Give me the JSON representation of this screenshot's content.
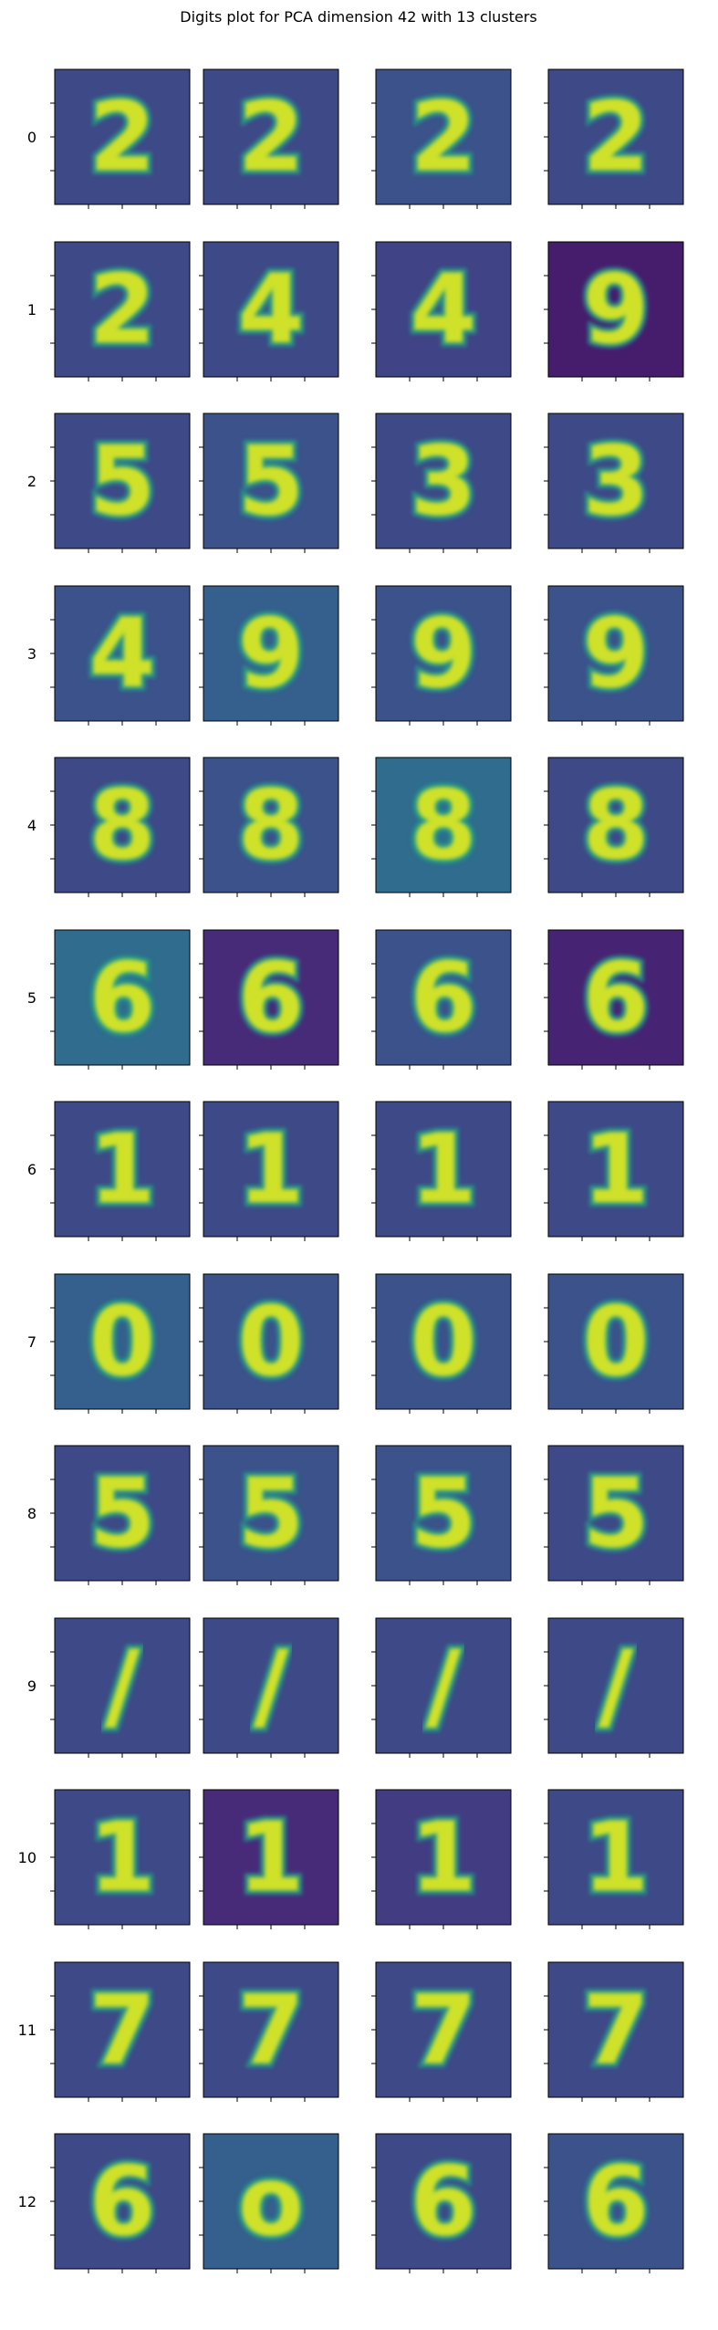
{
  "chart_data": {
    "type": "image-grid",
    "title": "Digits plot for PCA dimension 42 with 13 clusters",
    "colormap": "viridis",
    "colormap_stops": [
      "#440154",
      "#472d7b",
      "#3b528b",
      "#2c728e",
      "#21918c",
      "#28ae80",
      "#5ec962",
      "#addc30",
      "#fde725"
    ],
    "rows": [
      {
        "label": "0",
        "digits": [
          "2",
          "2",
          "2",
          "2"
        ],
        "backgrounds": [
          0.22,
          0.22,
          0.25,
          0.22
        ]
      },
      {
        "label": "1",
        "digits": [
          "2",
          "4",
          "4",
          "9"
        ],
        "backgrounds": [
          0.22,
          0.22,
          0.2,
          0.08
        ]
      },
      {
        "label": "2",
        "digits": [
          "5",
          "5",
          "3",
          "3"
        ],
        "backgrounds": [
          0.22,
          0.25,
          0.22,
          0.22
        ]
      },
      {
        "label": "3",
        "digits": [
          "4",
          "9",
          "9",
          "9"
        ],
        "backgrounds": [
          0.25,
          0.3,
          0.25,
          0.25
        ]
      },
      {
        "label": "4",
        "digits": [
          "8",
          "8",
          "8",
          "8"
        ],
        "backgrounds": [
          0.22,
          0.25,
          0.35,
          0.22
        ]
      },
      {
        "label": "5",
        "digits": [
          "6",
          "6",
          "6",
          "6"
        ],
        "backgrounds": [
          0.35,
          0.12,
          0.25,
          0.1
        ]
      },
      {
        "label": "6",
        "digits": [
          "1",
          "1",
          "1",
          "1"
        ],
        "backgrounds": [
          0.22,
          0.22,
          0.22,
          0.22
        ]
      },
      {
        "label": "7",
        "digits": [
          "0",
          "0",
          "0",
          "0"
        ],
        "backgrounds": [
          0.3,
          0.25,
          0.25,
          0.25
        ]
      },
      {
        "label": "8",
        "digits": [
          "5",
          "5",
          "5",
          "5"
        ],
        "backgrounds": [
          0.22,
          0.25,
          0.25,
          0.22
        ]
      },
      {
        "label": "9",
        "digits": [
          "/",
          "/",
          "/",
          "/"
        ],
        "backgrounds": [
          0.22,
          0.22,
          0.22,
          0.22
        ]
      },
      {
        "label": "10",
        "digits": [
          "1",
          "1",
          "1",
          "1"
        ],
        "backgrounds": [
          0.22,
          0.12,
          0.18,
          0.22
        ]
      },
      {
        "label": "11",
        "digits": [
          "7",
          "7",
          "7",
          "7"
        ],
        "backgrounds": [
          0.22,
          0.22,
          0.22,
          0.22
        ]
      },
      {
        "label": "12",
        "digits": [
          "6",
          "o",
          "6",
          "6"
        ],
        "backgrounds": [
          0.22,
          0.3,
          0.22,
          0.25
        ]
      }
    ]
  }
}
